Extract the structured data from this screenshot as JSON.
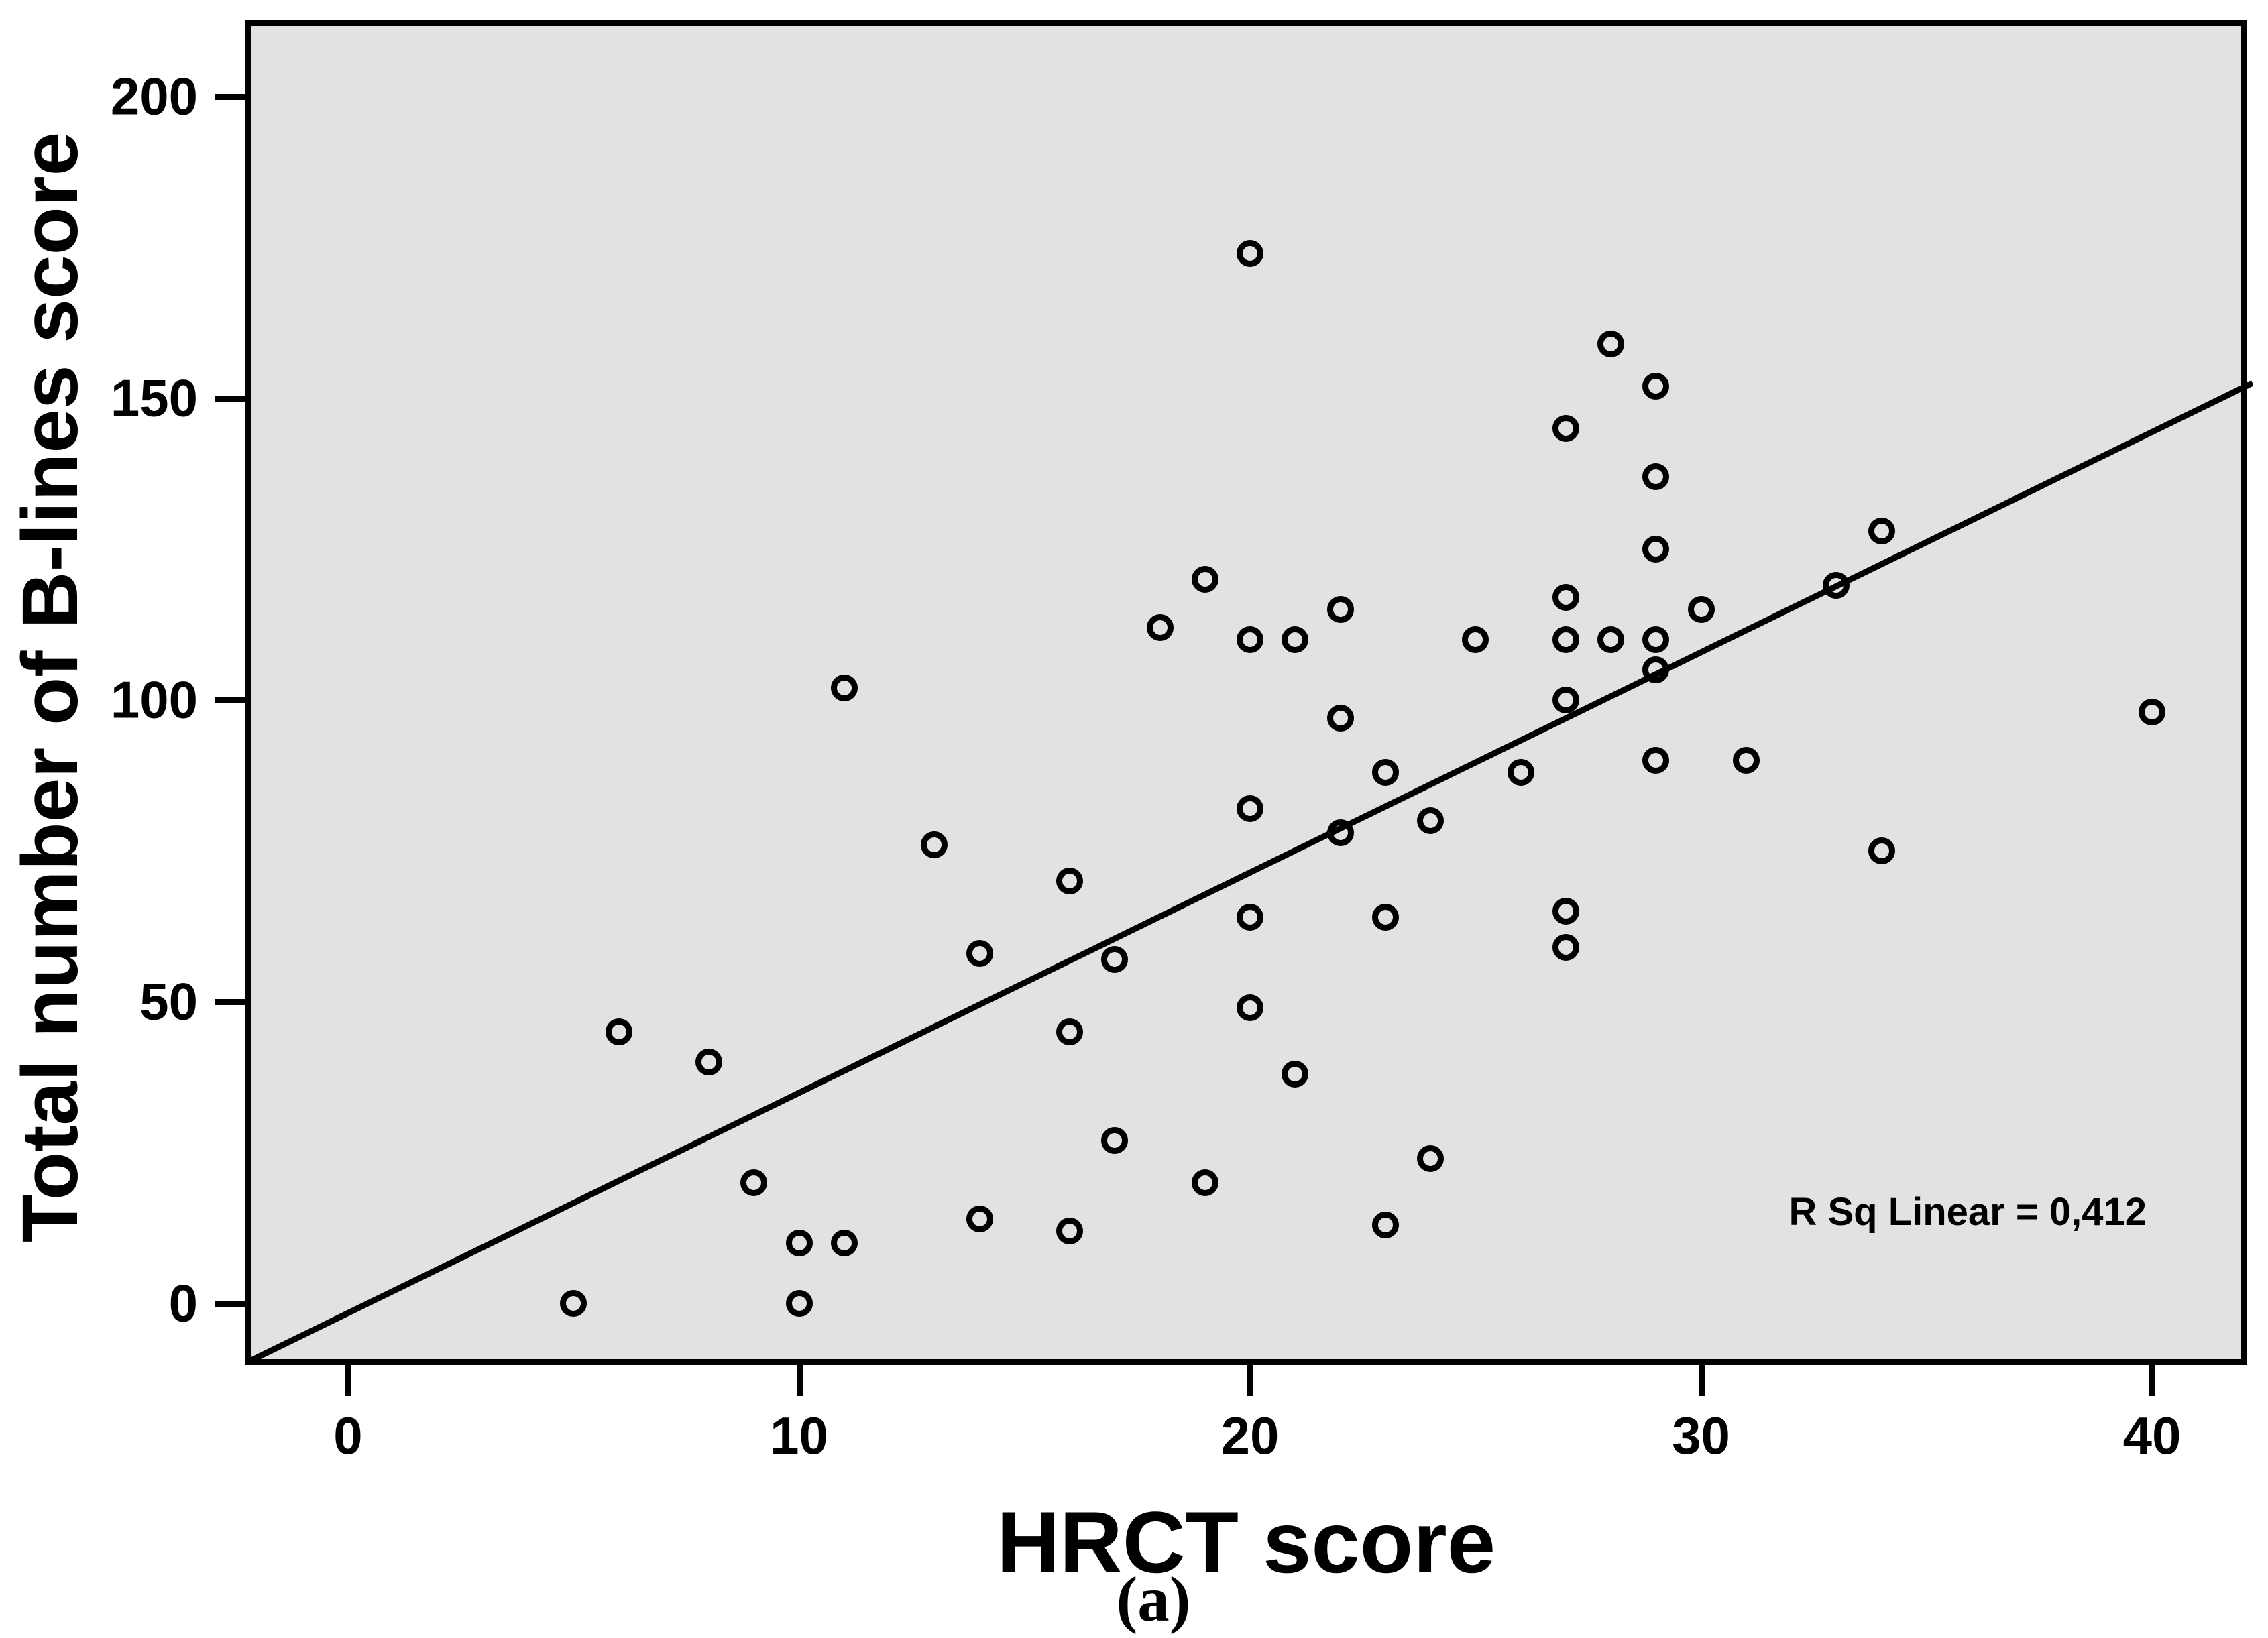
{
  "figure": {
    "y_axis": {
      "label": "Total number of B-lines score"
    },
    "x_axis": {
      "label": "HRCT score"
    },
    "annotation": "R Sq Linear = 0,412",
    "caption": "(a)"
  },
  "chart_data": {
    "type": "scatter",
    "title": "",
    "xlabel": "HRCT score",
    "ylabel": "Total number of B-lines score",
    "x_ticks": [
      0,
      10,
      20,
      30,
      40
    ],
    "y_ticks": [
      0,
      50,
      100,
      150,
      200
    ],
    "xlim": [
      -2.14,
      42.23
    ],
    "ylim": [
      -11.4,
      211.7
    ],
    "grid": false,
    "legend": "none",
    "marker": "open-circle",
    "points": [
      [
        5,
        0
      ],
      [
        6,
        45
      ],
      [
        8,
        40
      ],
      [
        9,
        20
      ],
      [
        10,
        0
      ],
      [
        10,
        10
      ],
      [
        11,
        10
      ],
      [
        11,
        102
      ],
      [
        13,
        76
      ],
      [
        14,
        14
      ],
      [
        14,
        58
      ],
      [
        16,
        12
      ],
      [
        16,
        45
      ],
      [
        16,
        70
      ],
      [
        17,
        27
      ],
      [
        17,
        57
      ],
      [
        18,
        112
      ],
      [
        19,
        20
      ],
      [
        19,
        120
      ],
      [
        20,
        49
      ],
      [
        20,
        64
      ],
      [
        20,
        82
      ],
      [
        20,
        110
      ],
      [
        20,
        174
      ],
      [
        21,
        38
      ],
      [
        21,
        110
      ],
      [
        22,
        78
      ],
      [
        22,
        97
      ],
      [
        22,
        115
      ],
      [
        23,
        13
      ],
      [
        23,
        64
      ],
      [
        23,
        88
      ],
      [
        24,
        24
      ],
      [
        24,
        80
      ],
      [
        25,
        110
      ],
      [
        26,
        88
      ],
      [
        27,
        59
      ],
      [
        27,
        65
      ],
      [
        27,
        100
      ],
      [
        27,
        110
      ],
      [
        27,
        117
      ],
      [
        27,
        145
      ],
      [
        28,
        110
      ],
      [
        28,
        159
      ],
      [
        29,
        90
      ],
      [
        29,
        105
      ],
      [
        29,
        110
      ],
      [
        29,
        125
      ],
      [
        29,
        137
      ],
      [
        29,
        152
      ],
      [
        30,
        115
      ],
      [
        31,
        90
      ],
      [
        33,
        119
      ],
      [
        34,
        75
      ],
      [
        34,
        128
      ],
      [
        40,
        98
      ]
    ],
    "regression_line": {
      "slope": 3.65,
      "intercept": -1.6,
      "x_start": -2.14,
      "x_end": 42.23
    },
    "annotation": {
      "text": "R Sq Linear = 0,412",
      "r_squared": "0,412"
    }
  }
}
